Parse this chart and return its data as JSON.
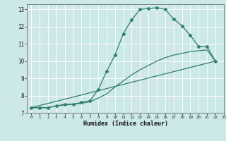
{
  "title": "",
  "xlabel": "Humidex (Indice chaleur)",
  "xlim": [
    -0.5,
    23
  ],
  "ylim": [
    7,
    13.3
  ],
  "xticks": [
    0,
    1,
    2,
    3,
    4,
    5,
    6,
    7,
    8,
    9,
    10,
    11,
    12,
    13,
    14,
    15,
    16,
    17,
    18,
    19,
    20,
    21,
    22,
    23
  ],
  "yticks": [
    7,
    8,
    9,
    10,
    11,
    12,
    13
  ],
  "background_color": "#cce8e8",
  "grid_color": "#ffffff",
  "line_color": "#2e7d6e",
  "line1": {
    "x": [
      0,
      1,
      2,
      3,
      4,
      5,
      6,
      7,
      8,
      9,
      10,
      11,
      12,
      13,
      14,
      15,
      16,
      17,
      18,
      19,
      20,
      21,
      22
    ],
    "y": [
      7.3,
      7.3,
      7.3,
      7.4,
      7.5,
      7.5,
      7.6,
      7.7,
      8.35,
      9.4,
      10.35,
      11.6,
      12.4,
      13.0,
      13.05,
      13.1,
      13.0,
      12.45,
      12.05,
      11.5,
      10.85,
      10.85,
      10.0
    ]
  },
  "line2": {
    "x": [
      0,
      1,
      2,
      3,
      4,
      5,
      6,
      7,
      8,
      9,
      10,
      11,
      12,
      13,
      14,
      15,
      16,
      17,
      18,
      19,
      20,
      21,
      22
    ],
    "y": [
      7.3,
      7.3,
      7.3,
      7.4,
      7.45,
      7.5,
      7.55,
      7.65,
      7.85,
      8.1,
      8.5,
      8.85,
      9.2,
      9.5,
      9.75,
      10.0,
      10.2,
      10.35,
      10.45,
      10.55,
      10.6,
      10.65,
      10.0
    ]
  },
  "line3": {
    "x": [
      0,
      22
    ],
    "y": [
      7.3,
      10.0
    ]
  }
}
